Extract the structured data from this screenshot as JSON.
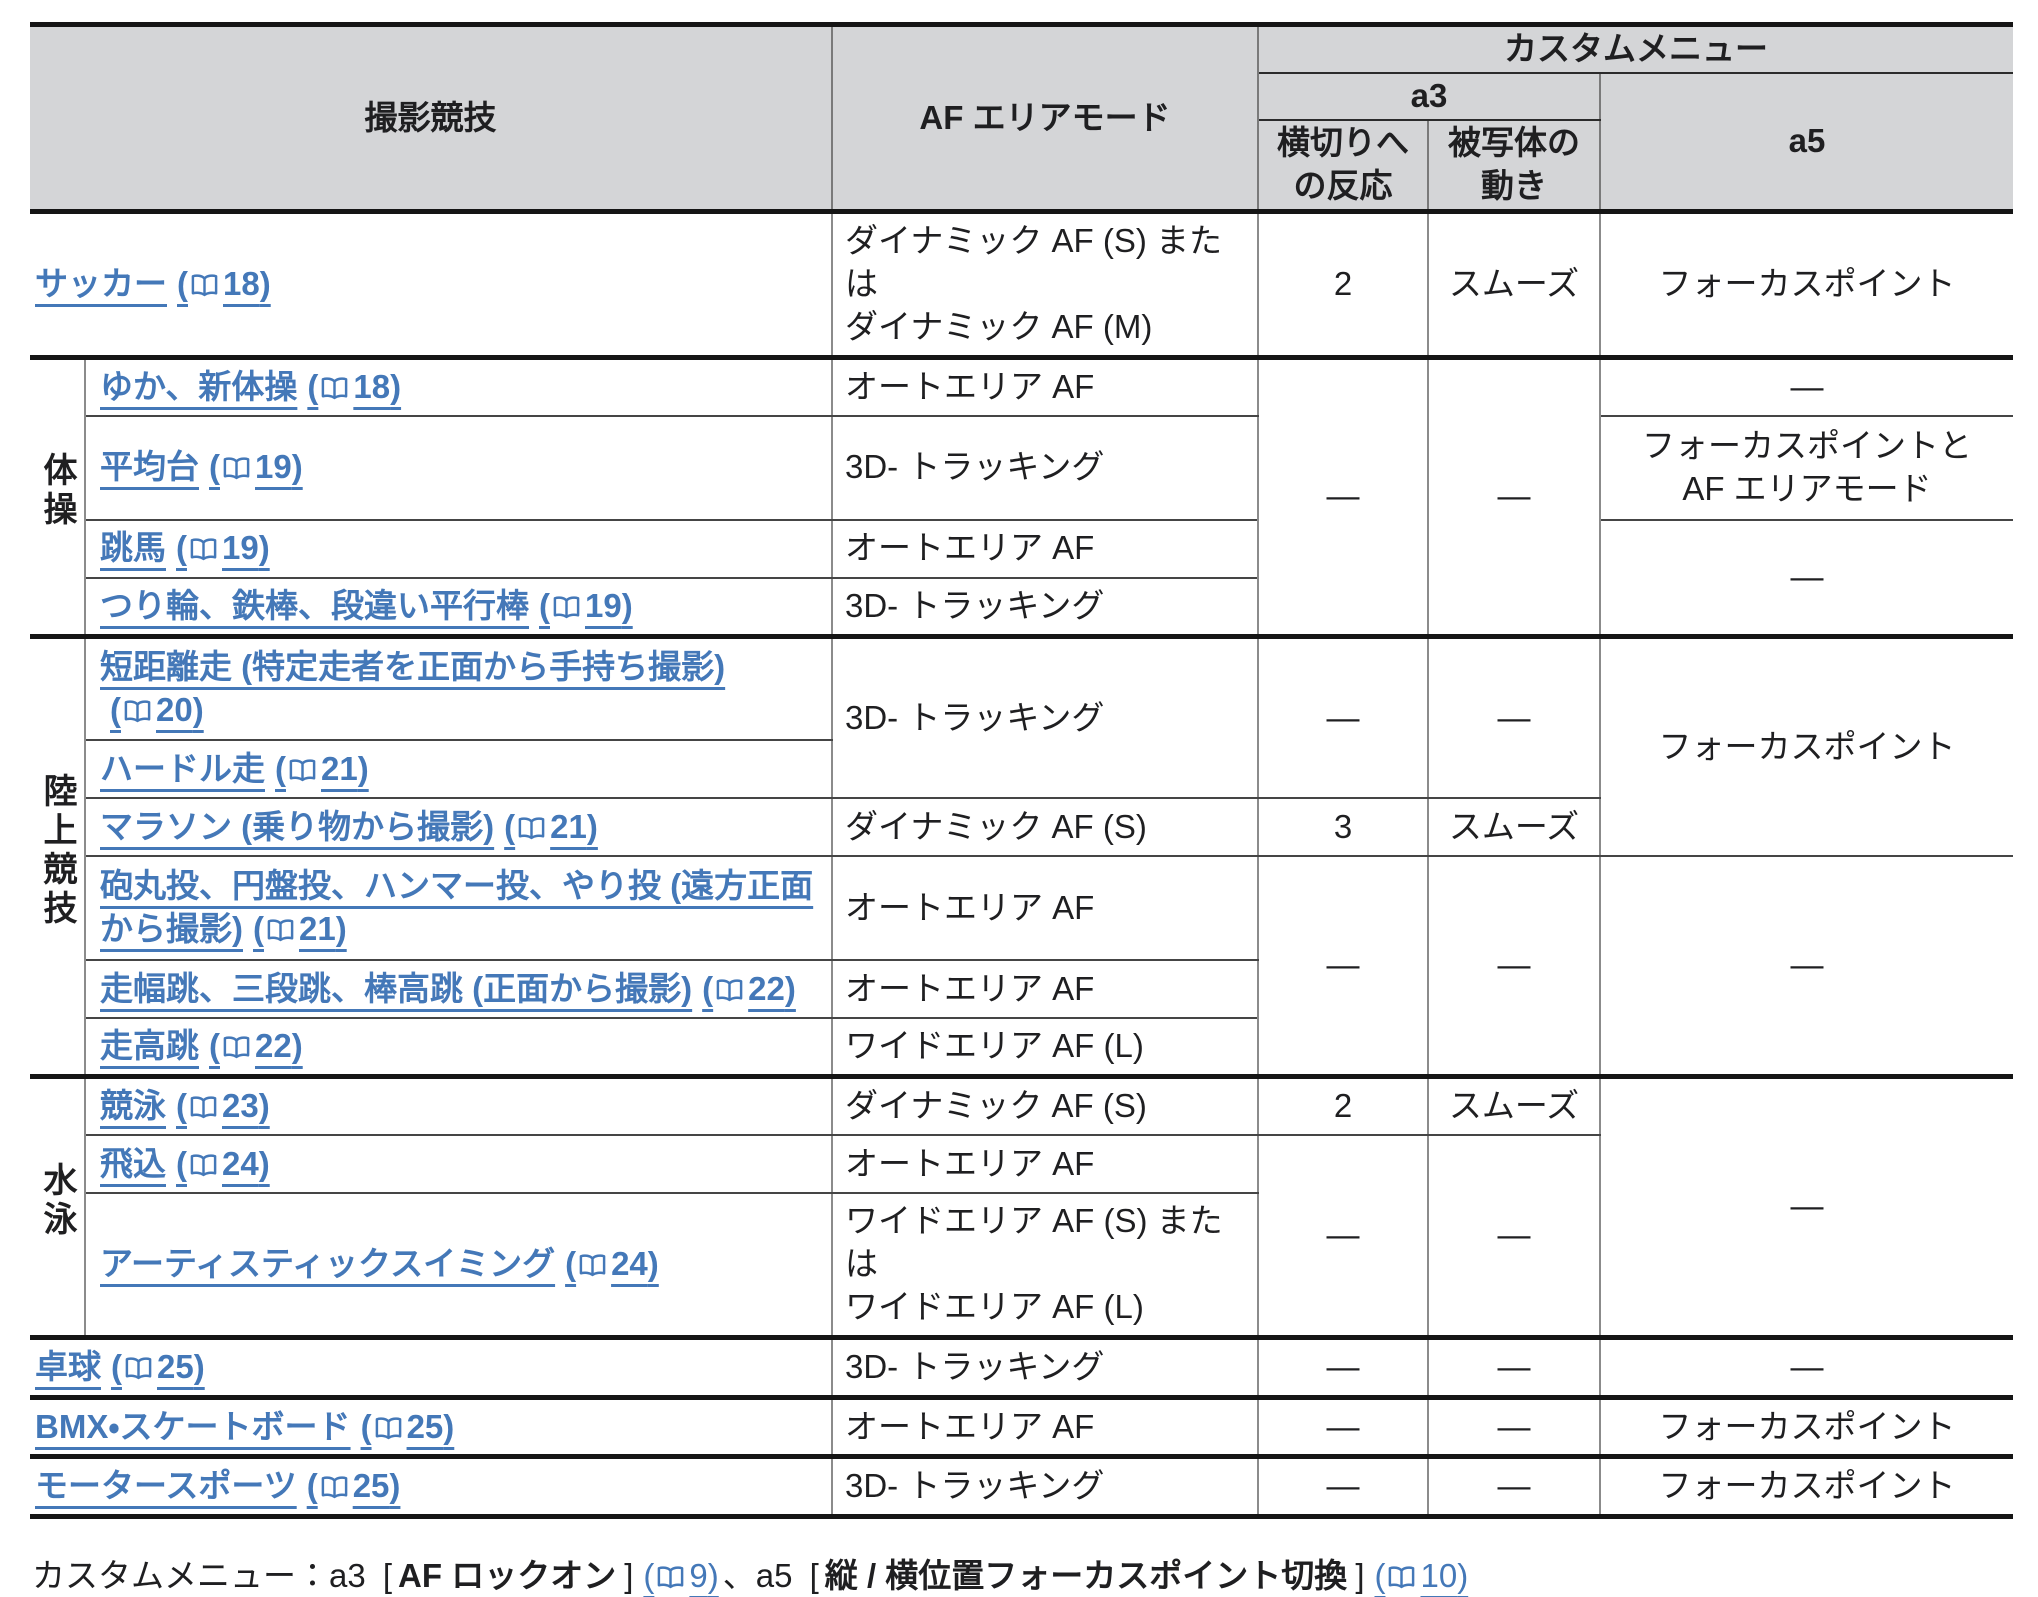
{
  "colors": {
    "header_bg": "#d4d5d7",
    "link_blue": "#4478b8",
    "text": "#1f1f21",
    "border_thick": "#151515",
    "border_thin": "#454545"
  },
  "punct": {
    "ref_open": "(",
    "ref_close": ")",
    "bracket_open": "[",
    "bracket_close": "]"
  },
  "header": {
    "sport": "撮影競技",
    "af_mode": "AF エリアモード",
    "custom_menu": "カスタムメニュー",
    "a3": "a3",
    "a3_sub1": "横切りへ\nの反応",
    "a3_sub2": "被写体の\n動き",
    "a5": "a5"
  },
  "groups": [
    {
      "rows": [
        {
          "sport": "サッカー",
          "ref": "18",
          "af": "ダイナミック AF (S) または\nダイナミック AF (M)",
          "reaction": "2",
          "movement": "スムーズ",
          "a5": "フォーカスポイント"
        }
      ]
    },
    {
      "label": "体操",
      "rows": [
        {
          "sport": "ゆか、新体操",
          "ref": "18",
          "af": "オートエリア AF",
          "reaction": "—",
          "movement": "—",
          "a5": "—"
        },
        {
          "sport": "平均台",
          "ref": "19",
          "af": "3D- トラッキング",
          "a5": "フォーカスポイントと\nAF エリアモード"
        },
        {
          "sport": "跳馬",
          "ref": "19",
          "af": "オートエリア AF",
          "a5": "—"
        },
        {
          "sport": "つり輪、鉄棒、段違い平行棒",
          "ref": "19",
          "af": "3D- トラッキング"
        }
      ]
    },
    {
      "label": "陸上競技",
      "rows": [
        {
          "sport": "短距離走 (特定走者を正面から手持ち撮影)",
          "ref": "20",
          "af": "3D- トラッキング",
          "reaction": "—",
          "movement": "—",
          "a5": "フォーカスポイント"
        },
        {
          "sport": "ハードル走",
          "ref": "21"
        },
        {
          "sport": "マラソン (乗り物から撮影)",
          "ref": "21",
          "af": "ダイナミック AF (S)",
          "reaction": "3",
          "movement": "スムーズ"
        },
        {
          "sport": "砲丸投、円盤投、ハンマー投、やり投 (遠方正面から撮影)",
          "ref": "21",
          "af": "オートエリア AF",
          "reaction": "—",
          "movement": "—",
          "a5": "—"
        },
        {
          "sport": "走幅跳、三段跳、棒高跳 (正面から撮影)",
          "ref": "22",
          "af": "オートエリア AF"
        },
        {
          "sport": "走高跳",
          "ref": "22",
          "af": "ワイドエリア AF (L)"
        }
      ]
    },
    {
      "label": "水泳",
      "rows": [
        {
          "sport": "競泳",
          "ref": "23",
          "af": "ダイナミック AF (S)",
          "reaction": "2",
          "movement": "スムーズ",
          "a5": "—"
        },
        {
          "sport": "飛込",
          "ref": "24",
          "af": "オートエリア AF",
          "reaction": "—",
          "movement": "—"
        },
        {
          "sport": "アーティスティックスイミング",
          "ref": "24",
          "af": "ワイドエリア AF (S) または\nワイドエリア AF (L)"
        }
      ]
    },
    {
      "rows": [
        {
          "sport": "卓球",
          "ref": "25",
          "af": "3D- トラッキング",
          "reaction": "—",
          "movement": "—",
          "a5": "—"
        }
      ]
    },
    {
      "rows": [
        {
          "sport": "BMX・スケートボード",
          "ref": "25",
          "af": "オートエリア AF",
          "reaction": "—",
          "movement": "—",
          "a5": "フォーカスポイント"
        }
      ]
    },
    {
      "rows": [
        {
          "sport": "モータースポーツ",
          "ref": "25",
          "af": "3D- トラッキング",
          "reaction": "—",
          "movement": "—",
          "a5": "フォーカスポイント"
        }
      ]
    }
  ],
  "footer": {
    "prefix": "カスタムメニュー：a3 ",
    "a3_setting": "AF ロックオン",
    "a3_ref": "9",
    "separator": "、a5 ",
    "a5_setting": "縦 / 横位置フォーカスポイント切換",
    "a5_ref": "10"
  }
}
